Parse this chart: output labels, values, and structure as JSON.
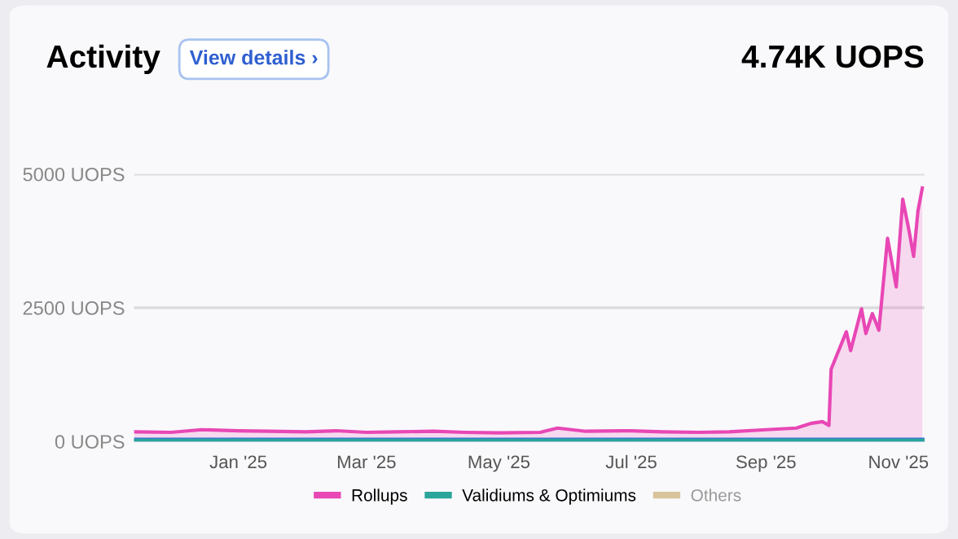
{
  "chart_data": {
    "type": "line",
    "title": "Activity",
    "subtitle": "4.74K UOPS",
    "annotations": [
      "View details ›"
    ],
    "xlim": [
      "2024-11-14",
      "2025-11-13"
    ],
    "xticks": [
      {
        "value": "2025-01-01",
        "label": "Jan '25"
      },
      {
        "value": "2025-03-01",
        "label": "Mar '25"
      },
      {
        "value": "2025-05-01",
        "label": "May '25"
      },
      {
        "value": "2025-07-01",
        "label": "Jul '25"
      },
      {
        "value": "2025-09-01",
        "label": "Sep '25"
      },
      {
        "value": "2025-11-01",
        "label": "Nov '25"
      }
    ],
    "ylim": [
      0,
      5000
    ],
    "yticks": [
      {
        "value": 0,
        "label": "0 UOPS"
      },
      {
        "value": 2500,
        "label": "2500 UOPS"
      },
      {
        "value": 5000,
        "label": "5000 UOPS"
      }
    ],
    "grid": "y",
    "legend": "bottom",
    "marker": "none",
    "line_style": "solid",
    "series": [
      {
        "name": "Rollups",
        "color": "#e847b5",
        "type": "area",
        "x": [
          "2024-11-14",
          "2024-12-01",
          "2024-12-15",
          "2025-01-01",
          "2025-01-15",
          "2025-02-01",
          "2025-02-15",
          "2025-03-01",
          "2025-03-15",
          "2025-04-01",
          "2025-04-15",
          "2025-05-01",
          "2025-05-20",
          "2025-05-28",
          "2025-06-10",
          "2025-07-01",
          "2025-07-15",
          "2025-08-01",
          "2025-08-15",
          "2025-09-01",
          "2025-09-15",
          "2025-09-22",
          "2025-09-27",
          "2025-09-30",
          "2025-10-01",
          "2025-10-04",
          "2025-10-08",
          "2025-10-10",
          "2025-10-15",
          "2025-10-17",
          "2025-10-20",
          "2025-10-23",
          "2025-10-27",
          "2025-10-31",
          "2025-11-03",
          "2025-11-06",
          "2025-11-08",
          "2025-11-10",
          "2025-11-12"
        ],
        "values": [
          180,
          170,
          220,
          200,
          190,
          180,
          200,
          170,
          180,
          190,
          170,
          160,
          170,
          250,
          190,
          200,
          180,
          170,
          180,
          220,
          250,
          340,
          370,
          300,
          1350,
          1650,
          2050,
          1700,
          2480,
          2020,
          2390,
          2080,
          3800,
          2890,
          4530,
          3920,
          3460,
          4310,
          4740
        ]
      },
      {
        "name": "Validiums & Optimiums",
        "color": "#2aa59a",
        "x": [
          "2024-11-14",
          "2025-11-13"
        ],
        "values": [
          20,
          20
        ]
      },
      {
        "name": "Others",
        "color": "#d8c39a"
      },
      {
        "color": "#3b6fd6",
        "x": [
          "2024-11-14",
          "2025-11-13"
        ],
        "values": [
          30,
          30
        ]
      }
    ]
  }
}
